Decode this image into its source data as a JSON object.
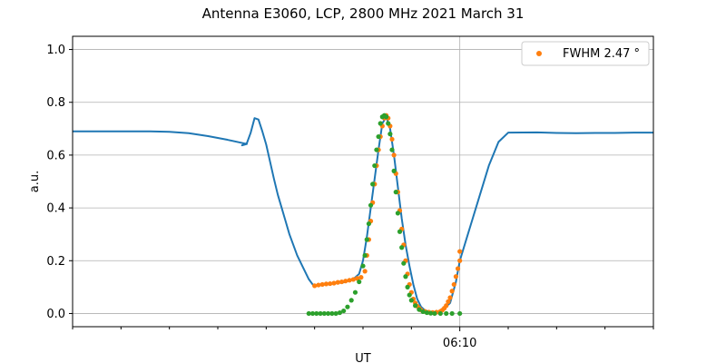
{
  "chart_data": {
    "type": "line",
    "title": "Antenna E3060, LCP, 2800 MHz 2021 March 31",
    "xlabel": "UT",
    "ylabel": "a.u.",
    "ylim": [
      -0.05,
      1.05
    ],
    "xlim": [
      6.0,
      6.3
    ],
    "y_ticks": [
      0.0,
      0.2,
      0.4,
      0.6,
      0.8,
      1.0
    ],
    "y_tick_labels": [
      "0.0",
      "0.2",
      "0.4",
      "0.6",
      "0.8",
      "1.0"
    ],
    "x_major_tick": {
      "x": 6.2,
      "label": "06:10"
    },
    "x_minor_ticks": [
      6.0,
      6.025,
      6.05,
      6.075,
      6.1,
      6.125,
      6.15,
      6.175,
      6.225,
      6.25,
      6.275,
      6.3
    ],
    "grid": true,
    "legend": {
      "position": "top-right",
      "label": "FWHM 2.47 °"
    },
    "colors": {
      "measured": "#1f77b4",
      "fit": "#ff7f0e",
      "model": "#2ca02c"
    },
    "series": [
      {
        "style": "line",
        "color": "#1f77b4",
        "points": [
          [
            6.0,
            0.69
          ],
          [
            6.02,
            0.69
          ],
          [
            6.04,
            0.69
          ],
          [
            6.05,
            0.688
          ],
          [
            6.06,
            0.683
          ],
          [
            6.07,
            0.672
          ],
          [
            6.08,
            0.658
          ],
          [
            6.09,
            0.642
          ],
          [
            6.0875,
            0.637
          ],
          [
            6.0875,
            0.637
          ],
          [
            6.09,
            0.645
          ],
          [
            6.092,
            0.685
          ],
          [
            6.094,
            0.74
          ],
          [
            6.096,
            0.735
          ],
          [
            6.098,
            0.69
          ],
          [
            6.1,
            0.64
          ],
          [
            6.102,
            0.575
          ],
          [
            6.104,
            0.51
          ],
          [
            6.106,
            0.45
          ],
          [
            6.108,
            0.4
          ],
          [
            6.11,
            0.35
          ],
          [
            6.112,
            0.3
          ],
          [
            6.114,
            0.26
          ],
          [
            6.116,
            0.22
          ],
          [
            6.118,
            0.19
          ],
          [
            6.12,
            0.16
          ],
          [
            6.122,
            0.13
          ],
          [
            6.124,
            0.11
          ],
          [
            6.126,
            0.105
          ],
          [
            6.13,
            0.11
          ],
          [
            6.14,
            0.118
          ],
          [
            6.145,
            0.13
          ],
          [
            6.148,
            0.15
          ],
          [
            6.15,
            0.2
          ],
          [
            6.152,
            0.29
          ],
          [
            6.154,
            0.4
          ],
          [
            6.156,
            0.51
          ],
          [
            6.158,
            0.62
          ],
          [
            6.16,
            0.72
          ],
          [
            6.162,
            0.745
          ],
          [
            6.164,
            0.7
          ],
          [
            6.166,
            0.6
          ],
          [
            6.168,
            0.48
          ],
          [
            6.17,
            0.36
          ],
          [
            6.172,
            0.26
          ],
          [
            6.174,
            0.18
          ],
          [
            6.176,
            0.11
          ],
          [
            6.178,
            0.055
          ],
          [
            6.18,
            0.025
          ],
          [
            6.182,
            0.012
          ],
          [
            6.185,
            0.005
          ],
          [
            6.19,
            0.005
          ],
          [
            6.195,
            0.04
          ],
          [
            6.198,
            0.12
          ],
          [
            6.2,
            0.2
          ],
          [
            6.205,
            0.32
          ],
          [
            6.21,
            0.44
          ],
          [
            6.215,
            0.56
          ],
          [
            6.22,
            0.65
          ],
          [
            6.225,
            0.685
          ],
          [
            6.24,
            0.686
          ],
          [
            6.25,
            0.684
          ],
          [
            6.26,
            0.683
          ],
          [
            6.27,
            0.684
          ],
          [
            6.28,
            0.684
          ],
          [
            6.29,
            0.685
          ],
          [
            6.3,
            0.685
          ]
        ]
      },
      {
        "name": "FWHM 2.47 °",
        "style": "markers",
        "color": "#ff7f0e",
        "points": [
          [
            6.125,
            0.105
          ],
          [
            6.127,
            0.108
          ],
          [
            6.129,
            0.11
          ],
          [
            6.131,
            0.112
          ],
          [
            6.133,
            0.113
          ],
          [
            6.135,
            0.115
          ],
          [
            6.137,
            0.118
          ],
          [
            6.139,
            0.12
          ],
          [
            6.141,
            0.123
          ],
          [
            6.143,
            0.126
          ],
          [
            6.145,
            0.129
          ],
          [
            6.147,
            0.133
          ],
          [
            6.149,
            0.137
          ],
          [
            6.151,
            0.16
          ],
          [
            6.152,
            0.22
          ],
          [
            6.153,
            0.28
          ],
          [
            6.154,
            0.35
          ],
          [
            6.155,
            0.42
          ],
          [
            6.156,
            0.49
          ],
          [
            6.157,
            0.56
          ],
          [
            6.158,
            0.62
          ],
          [
            6.159,
            0.67
          ],
          [
            6.16,
            0.71
          ],
          [
            6.161,
            0.74
          ],
          [
            6.162,
            0.75
          ],
          [
            6.163,
            0.74
          ],
          [
            6.164,
            0.71
          ],
          [
            6.165,
            0.66
          ],
          [
            6.166,
            0.6
          ],
          [
            6.167,
            0.53
          ],
          [
            6.168,
            0.46
          ],
          [
            6.169,
            0.39
          ],
          [
            6.17,
            0.32
          ],
          [
            6.171,
            0.26
          ],
          [
            6.172,
            0.2
          ],
          [
            6.173,
            0.15
          ],
          [
            6.174,
            0.11
          ],
          [
            6.175,
            0.08
          ],
          [
            6.176,
            0.055
          ],
          [
            6.177,
            0.04
          ],
          [
            6.178,
            0.028
          ],
          [
            6.179,
            0.02
          ],
          [
            6.18,
            0.013
          ],
          [
            6.182,
            0.008
          ],
          [
            6.184,
            0.005
          ],
          [
            6.186,
            0.004
          ],
          [
            6.188,
            0.005
          ],
          [
            6.19,
            0.008
          ],
          [
            6.191,
            0.013
          ],
          [
            6.192,
            0.02
          ],
          [
            6.193,
            0.03
          ],
          [
            6.194,
            0.045
          ],
          [
            6.195,
            0.06
          ],
          [
            6.196,
            0.085
          ],
          [
            6.197,
            0.11
          ],
          [
            6.198,
            0.14
          ],
          [
            6.199,
            0.17
          ],
          [
            6.2,
            0.2
          ],
          [
            6.2,
            0.235
          ]
        ]
      },
      {
        "style": "markers",
        "color": "#2ca02c",
        "points": [
          [
            6.122,
            0.0
          ],
          [
            6.124,
            0.0
          ],
          [
            6.126,
            0.0
          ],
          [
            6.128,
            0.0
          ],
          [
            6.13,
            0.0
          ],
          [
            6.132,
            0.0
          ],
          [
            6.134,
            0.0
          ],
          [
            6.136,
            0.0
          ],
          [
            6.138,
            0.003
          ],
          [
            6.14,
            0.01
          ],
          [
            6.142,
            0.025
          ],
          [
            6.144,
            0.05
          ],
          [
            6.146,
            0.08
          ],
          [
            6.148,
            0.12
          ],
          [
            6.15,
            0.18
          ],
          [
            6.151,
            0.22
          ],
          [
            6.152,
            0.28
          ],
          [
            6.153,
            0.34
          ],
          [
            6.154,
            0.41
          ],
          [
            6.155,
            0.49
          ],
          [
            6.156,
            0.56
          ],
          [
            6.157,
            0.62
          ],
          [
            6.158,
            0.67
          ],
          [
            6.159,
            0.72
          ],
          [
            6.16,
            0.745
          ],
          [
            6.161,
            0.75
          ],
          [
            6.162,
            0.745
          ],
          [
            6.163,
            0.72
          ],
          [
            6.164,
            0.68
          ],
          [
            6.165,
            0.62
          ],
          [
            6.166,
            0.54
          ],
          [
            6.167,
            0.46
          ],
          [
            6.168,
            0.38
          ],
          [
            6.169,
            0.31
          ],
          [
            6.17,
            0.25
          ],
          [
            6.171,
            0.19
          ],
          [
            6.172,
            0.14
          ],
          [
            6.173,
            0.1
          ],
          [
            6.174,
            0.07
          ],
          [
            6.175,
            0.05
          ],
          [
            6.177,
            0.03
          ],
          [
            6.179,
            0.015
          ],
          [
            6.181,
            0.007
          ],
          [
            6.183,
            0.003
          ],
          [
            6.185,
            0.001
          ],
          [
            6.187,
            0.0
          ],
          [
            6.19,
            0.0
          ],
          [
            6.193,
            0.0
          ],
          [
            6.196,
            0.0
          ],
          [
            6.2,
            0.0
          ]
        ]
      }
    ]
  }
}
